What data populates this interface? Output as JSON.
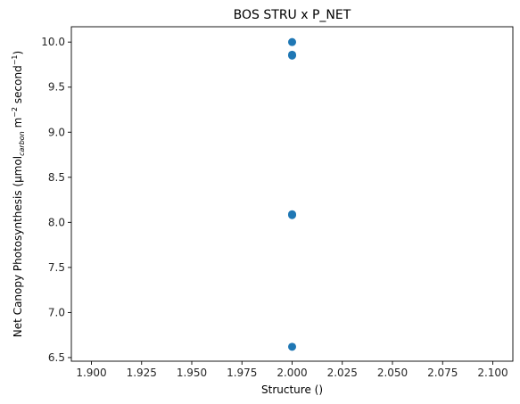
{
  "chart_data": {
    "type": "scatter",
    "title": "BOS STRU x P_NET",
    "xlabel": "Structure ()",
    "ylabel": {
      "prefix": "Net Canopy Photosynthesis (µmol",
      "subscript": "carbon",
      "middle": " m",
      "sup1": "−2",
      "middle2": " second",
      "sup2": "−1",
      "suffix": ")"
    },
    "xlim": [
      1.89,
      2.11
    ],
    "ylim": [
      6.46,
      10.17
    ],
    "xticks": [
      "1.900",
      "1.925",
      "1.950",
      "1.975",
      "2.000",
      "2.025",
      "2.050",
      "2.075",
      "2.100"
    ],
    "yticks": [
      "6.5",
      "7.0",
      "7.5",
      "8.0",
      "8.5",
      "9.0",
      "9.5",
      "10.0"
    ],
    "grid": false,
    "series": [
      {
        "color": "#1f77b4",
        "x": [
          2.0,
          2.0,
          2.0,
          2.0,
          2.0,
          2.0
        ],
        "y": [
          10.0,
          9.86,
          9.85,
          8.09,
          8.08,
          6.62
        ]
      }
    ]
  }
}
